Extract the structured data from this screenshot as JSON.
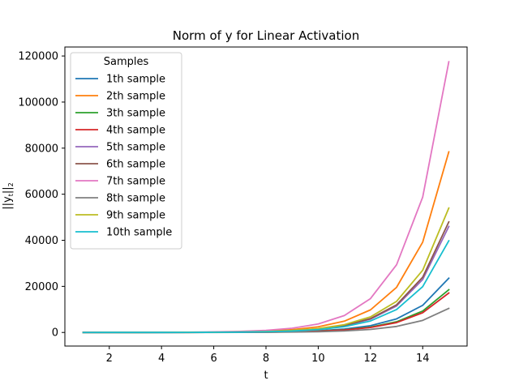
{
  "chart_data": {
    "type": "line",
    "title": "Norm of y for Linear Activation",
    "xlabel": "t",
    "ylabel": "||y_t||_2",
    "xlim": [
      0.3,
      15.7
    ],
    "ylim": [
      -5900,
      123900
    ],
    "x_ticks": [
      2,
      4,
      6,
      8,
      10,
      12,
      14
    ],
    "y_ticks": [
      0,
      20000,
      40000,
      60000,
      80000,
      100000,
      120000
    ],
    "grid": false,
    "legend": {
      "title": "Samples",
      "placement": "upper-left"
    },
    "x": [
      1,
      2,
      3,
      4,
      5,
      6,
      7,
      8,
      9,
      10,
      11,
      12,
      13,
      14,
      15
    ],
    "series": [
      {
        "name": "1th sample",
        "color": "#1f77b4",
        "values": [
          1,
          3,
          6,
          12,
          23,
          46,
          92,
          184,
          368,
          736,
          1472,
          2945,
          5890,
          11780,
          23560
        ]
      },
      {
        "name": "2th sample",
        "color": "#ff7f0e",
        "values": [
          5,
          10,
          19,
          38,
          77,
          153,
          306,
          613,
          1225,
          2450,
          4900,
          9800,
          19600,
          39200,
          78400
        ]
      },
      {
        "name": "3th sample",
        "color": "#2ca02c",
        "values": [
          1,
          2,
          5,
          9,
          18,
          36,
          72,
          145,
          290,
          580,
          1160,
          2320,
          4640,
          9280,
          18560
        ]
      },
      {
        "name": "4th sample",
        "color": "#d62728",
        "values": [
          1,
          2,
          4,
          8,
          17,
          34,
          67,
          134,
          268,
          535,
          1070,
          2140,
          4280,
          8560,
          17120
        ]
      },
      {
        "name": "5th sample",
        "color": "#9467bd",
        "values": [
          3,
          6,
          11,
          22,
          45,
          90,
          180,
          359,
          719,
          1438,
          2875,
          5750,
          11500,
          23000,
          46000
        ]
      },
      {
        "name": "6th sample",
        "color": "#8c564b",
        "values": [
          3,
          6,
          12,
          23,
          47,
          94,
          188,
          375,
          750,
          1500,
          3000,
          6000,
          12000,
          24000,
          48000
        ]
      },
      {
        "name": "7th sample",
        "color": "#e377c2",
        "values": [
          7,
          14,
          29,
          57,
          115,
          229,
          459,
          918,
          1836,
          3672,
          7344,
          14688,
          29375,
          58750,
          117500
        ]
      },
      {
        "name": "8th sample",
        "color": "#7f7f7f",
        "values": [
          1,
          1,
          3,
          5,
          10,
          20,
          41,
          82,
          163,
          327,
          653,
          1306,
          2613,
          5225,
          10450
        ]
      },
      {
        "name": "9th sample",
        "color": "#bcbd22",
        "values": [
          3,
          7,
          13,
          26,
          53,
          106,
          211,
          422,
          844,
          1688,
          3375,
          6750,
          13500,
          27000,
          54000
        ]
      },
      {
        "name": "10th sample",
        "color": "#17becf",
        "values": [
          2,
          5,
          10,
          19,
          39,
          78,
          155,
          311,
          622,
          1244,
          2488,
          4975,
          9950,
          19900,
          39800
        ]
      }
    ]
  }
}
